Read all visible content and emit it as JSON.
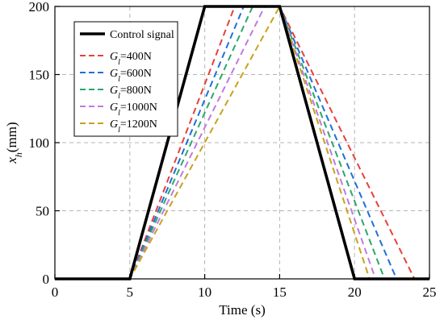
{
  "chart_data": {
    "type": "line",
    "title": "",
    "xlabel": "Time (s)",
    "ylabel": {
      "base": "x",
      "sub": "h",
      "unit": "(mm)"
    },
    "xlim": [
      0,
      25
    ],
    "ylim": [
      0,
      200
    ],
    "xticks": [
      "0",
      "5",
      "10",
      "15",
      "20",
      "25"
    ],
    "yticks": [
      "0",
      "50",
      "100",
      "150",
      "200"
    ],
    "grid": true,
    "legend_position": "top-left",
    "series": [
      {
        "name": "Control signal",
        "label_plain": "Control signal",
        "color": "#000000",
        "dashed": false,
        "x": [
          0,
          5,
          10,
          15,
          20,
          25
        ],
        "y": [
          0,
          0,
          200,
          200,
          0,
          0
        ]
      },
      {
        "name": "Gl=400N",
        "label_base": "G",
        "label_sub": "l",
        "label_rest": "=400N",
        "color": "#e8403a",
        "dashed": true,
        "x": [
          0,
          5,
          12.0,
          15,
          24.0,
          25
        ],
        "y": [
          0,
          0,
          200,
          200,
          0,
          0
        ]
      },
      {
        "name": "Gl=600N",
        "label_base": "G",
        "label_sub": "l",
        "label_rest": "=600N",
        "color": "#1e6fd9",
        "dashed": true,
        "x": [
          0,
          5,
          12.6,
          15,
          22.8,
          25
        ],
        "y": [
          0,
          0,
          200,
          200,
          0,
          0
        ]
      },
      {
        "name": "Gl=800N",
        "label_base": "G",
        "label_sub": "l",
        "label_rest": "=800N",
        "color": "#2aa86a",
        "dashed": true,
        "x": [
          0,
          5,
          13.2,
          15,
          22.0,
          25
        ],
        "y": [
          0,
          0,
          200,
          200,
          0,
          0
        ]
      },
      {
        "name": "Gl=1000N",
        "label_base": "G",
        "label_sub": "l",
        "label_rest": "=1000N",
        "color": "#c07ae0",
        "dashed": true,
        "x": [
          0,
          5,
          14.0,
          15,
          21.4,
          25
        ],
        "y": [
          0,
          0,
          200,
          200,
          0,
          0
        ]
      },
      {
        "name": "Gl=1200N",
        "label_base": "G",
        "label_sub": "l",
        "label_rest": "=1200N",
        "color": "#c9a21a",
        "dashed": true,
        "x": [
          0,
          5,
          15.0,
          15,
          21.0,
          25
        ],
        "y": [
          0,
          0,
          200,
          200,
          0,
          0
        ]
      }
    ]
  }
}
